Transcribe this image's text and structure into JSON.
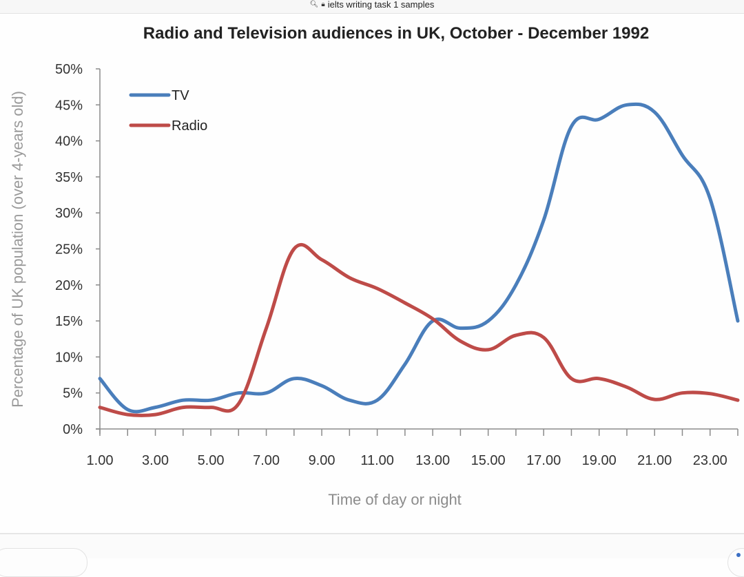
{
  "browser": {
    "address_text": "ielts writing task 1 samples",
    "search_icon": "search-icon",
    "lock_icon": "lock-icon"
  },
  "chart_data": {
    "type": "line",
    "title": "Radio and Television audiences in UK, October - December 1992",
    "xlabel": "Time of day or night",
    "ylabel": "Percentage of UK population (over 4-years old)",
    "x": [
      1,
      2,
      3,
      4,
      5,
      6,
      7,
      8,
      9,
      10,
      11,
      12,
      13,
      14,
      15,
      16,
      17,
      18,
      19,
      20,
      21,
      22,
      23,
      24
    ],
    "xlim": [
      1,
      24
    ],
    "x_tick_labels": [
      "1.00",
      "3.00",
      "5.00",
      "7.00",
      "9.00",
      "11.00",
      "13.00",
      "15.00",
      "17.00",
      "19.00",
      "21.00",
      "23.00"
    ],
    "x_tick_label_values": [
      1,
      3,
      5,
      7,
      9,
      11,
      13,
      15,
      17,
      19,
      21,
      23
    ],
    "ylim": [
      0,
      50
    ],
    "y_ticks": [
      0,
      5,
      10,
      15,
      20,
      25,
      30,
      35,
      40,
      45,
      50
    ],
    "y_tick_labels": [
      "0%",
      "5%",
      "10%",
      "15%",
      "20%",
      "25%",
      "30%",
      "35%",
      "40%",
      "45%",
      "50%"
    ],
    "grid": false,
    "legend_position": "top-left",
    "series": [
      {
        "name": "TV",
        "color": "#4a7ebb",
        "values": [
          7,
          2.7,
          3,
          4,
          4,
          5,
          5,
          7,
          6,
          4,
          4,
          9,
          15,
          14,
          15,
          20,
          29,
          42,
          43,
          45,
          44,
          38,
          32,
          15
        ]
      },
      {
        "name": "Radio",
        "color": "#be4b48",
        "values": [
          3,
          2,
          2,
          3,
          3,
          3.5,
          14,
          25,
          23.5,
          21,
          19.5,
          17.5,
          15.3,
          12.2,
          11,
          13,
          12.7,
          7,
          7,
          5.8,
          4.1,
          5,
          4.9,
          4
        ]
      }
    ]
  }
}
